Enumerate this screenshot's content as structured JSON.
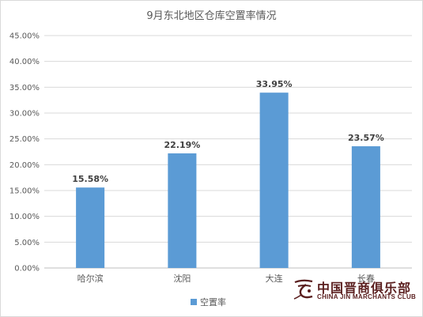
{
  "chart_data": {
    "type": "bar",
    "title": "9月东北地区仓库空置率情况",
    "categories": [
      "哈尔滨",
      "沈阳",
      "大连",
      "长春"
    ],
    "series": [
      {
        "name": "空置率",
        "values": [
          15.58,
          22.19,
          33.95,
          23.57
        ],
        "color": "#5b9bd5"
      }
    ],
    "data_labels": [
      "15.58%",
      "22.19%",
      "33.95%",
      "23.57%"
    ],
    "yticks": [
      "0.00%",
      "5.00%",
      "10.00%",
      "15.00%",
      "20.00%",
      "25.00%",
      "30.00%",
      "35.00%",
      "40.00%",
      "45.00%"
    ],
    "ylim": [
      0,
      45
    ],
    "grid": true,
    "legend": "bottom"
  },
  "watermark": {
    "cn": "中国晋商俱乐部",
    "en": "CHINA JIN MARCHANTS CLUB",
    "color": "#5a1e1e"
  }
}
